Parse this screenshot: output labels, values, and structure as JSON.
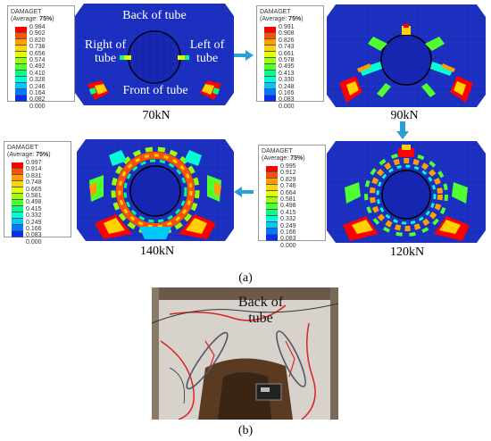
{
  "legend_title": "DAMAGET",
  "legend_subtitle_prefix": "(Average: ",
  "legend_subtitle_value": "75%",
  "legend_subtitle_suffix": ")",
  "legend_colors": [
    "#ff0000",
    "#ff4f00",
    "#ff9e00",
    "#ffd200",
    "#e0ff00",
    "#99ff00",
    "#4fff2f",
    "#00ff85",
    "#00ffd4",
    "#00c8ff",
    "#0078ff",
    "#0030ff",
    "#0000ff"
  ],
  "legends": [
    {
      "values": [
        "0.984",
        "0.902",
        "0.820",
        "0.738",
        "0.656",
        "0.574",
        "0.492",
        "0.410",
        "0.328",
        "0.246",
        "0.164",
        "0.082",
        "0.000"
      ]
    },
    {
      "values": [
        "0.991",
        "0.908",
        "0.826",
        "0.743",
        "0.661",
        "0.578",
        "0.495",
        "0.413",
        "0.330",
        "0.248",
        "0.165",
        "0.083",
        "0.000"
      ]
    },
    {
      "values": [
        "0.997",
        "0.914",
        "0.831",
        "0.748",
        "0.665",
        "0.581",
        "0.498",
        "0.415",
        "0.332",
        "0.249",
        "0.166",
        "0.083",
        "0.000"
      ]
    },
    {
      "values": [
        "0.995",
        "0.912",
        "0.829",
        "0.746",
        "0.664",
        "0.581",
        "0.498",
        "0.415",
        "0.332",
        "0.249",
        "0.166",
        "0.083",
        "0.000"
      ]
    }
  ],
  "panel_labels": {
    "back": "Back of tube",
    "right_1": "Right of",
    "right_2": "tube",
    "left_1": "Left of",
    "left_2": "tube",
    "front": "Front of tube"
  },
  "loads": [
    "70kN",
    "90kN",
    "140kN",
    "120kN"
  ],
  "caption_a": "(a)",
  "caption_b": "(b)",
  "photo_label_1": "Back of",
  "photo_label_2": "tube",
  "accent_blue": "#2a9fd6",
  "fem_blue": "#1a2fc0"
}
